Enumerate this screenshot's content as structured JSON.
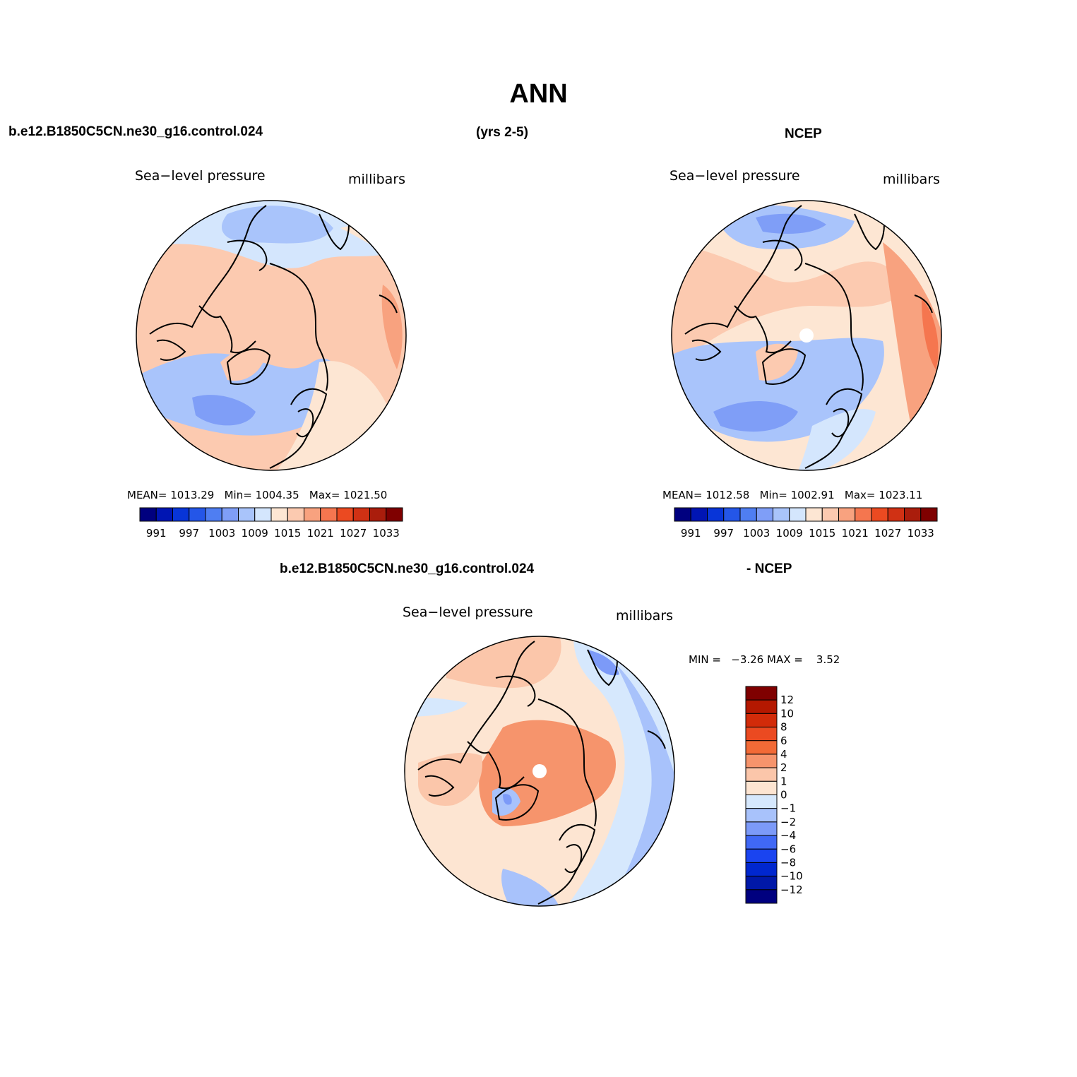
{
  "title": "ANN",
  "header": {
    "case_name": "b.e12.B1850C5CN.ne30_g16.control.024",
    "years": "(yrs 2-5)",
    "obs_name": "NCEP",
    "diff_case": "b.e12.B1850C5CN.ne30_g16.control.024",
    "diff_obs": "- NCEP"
  },
  "panels": {
    "model": {
      "variable": "Sea−level pressure",
      "units": "millibars",
      "mean_label": "MEAN=",
      "mean": "1013.29",
      "min_label": "Min=",
      "min": "1004.35",
      "max_label": "Max=",
      "max": "1021.50"
    },
    "obs": {
      "variable": "Sea−level pressure",
      "units": "millibars",
      "mean_label": "MEAN=",
      "mean": "1012.58",
      "min_label": "Min=",
      "min": "1002.91",
      "max_label": "Max=",
      "max": "1023.11"
    },
    "diff": {
      "variable": "Sea−level pressure",
      "units": "millibars",
      "min_label": "MIN =",
      "min": "−3.26",
      "max_label": "MAX =",
      "max": "3.52"
    }
  },
  "colorbar_abs": {
    "colors": [
      "#00007f",
      "#0015b3",
      "#0835d8",
      "#2456e8",
      "#4f7ef2",
      "#7f9ef7",
      "#a9c4fb",
      "#d4e6fd",
      "#fde6d3",
      "#fccab0",
      "#f8a27f",
      "#f5764f",
      "#eb4a21",
      "#d03114",
      "#aa1d0c",
      "#7f0000"
    ],
    "labels": [
      "991",
      "997",
      "1003",
      "1009",
      "1015",
      "1021",
      "1027",
      "1033"
    ]
  },
  "colorbar_diff": {
    "colors": [
      "#00007f",
      "#0018a8",
      "#0027cf",
      "#1a44f0",
      "#4068f5",
      "#7c9af8",
      "#a8c2fb",
      "#d6e8fd",
      "#fde5d2",
      "#fbc6aa",
      "#f6946c",
      "#f26a36",
      "#eb4a21",
      "#d22b09",
      "#b41800",
      "#7f0000"
    ],
    "labels": [
      "12",
      "10",
      "8",
      "6",
      "4",
      "2",
      "1",
      "0",
      "−1",
      "−2",
      "−4",
      "−6",
      "−8",
      "−10",
      "−12"
    ]
  }
}
